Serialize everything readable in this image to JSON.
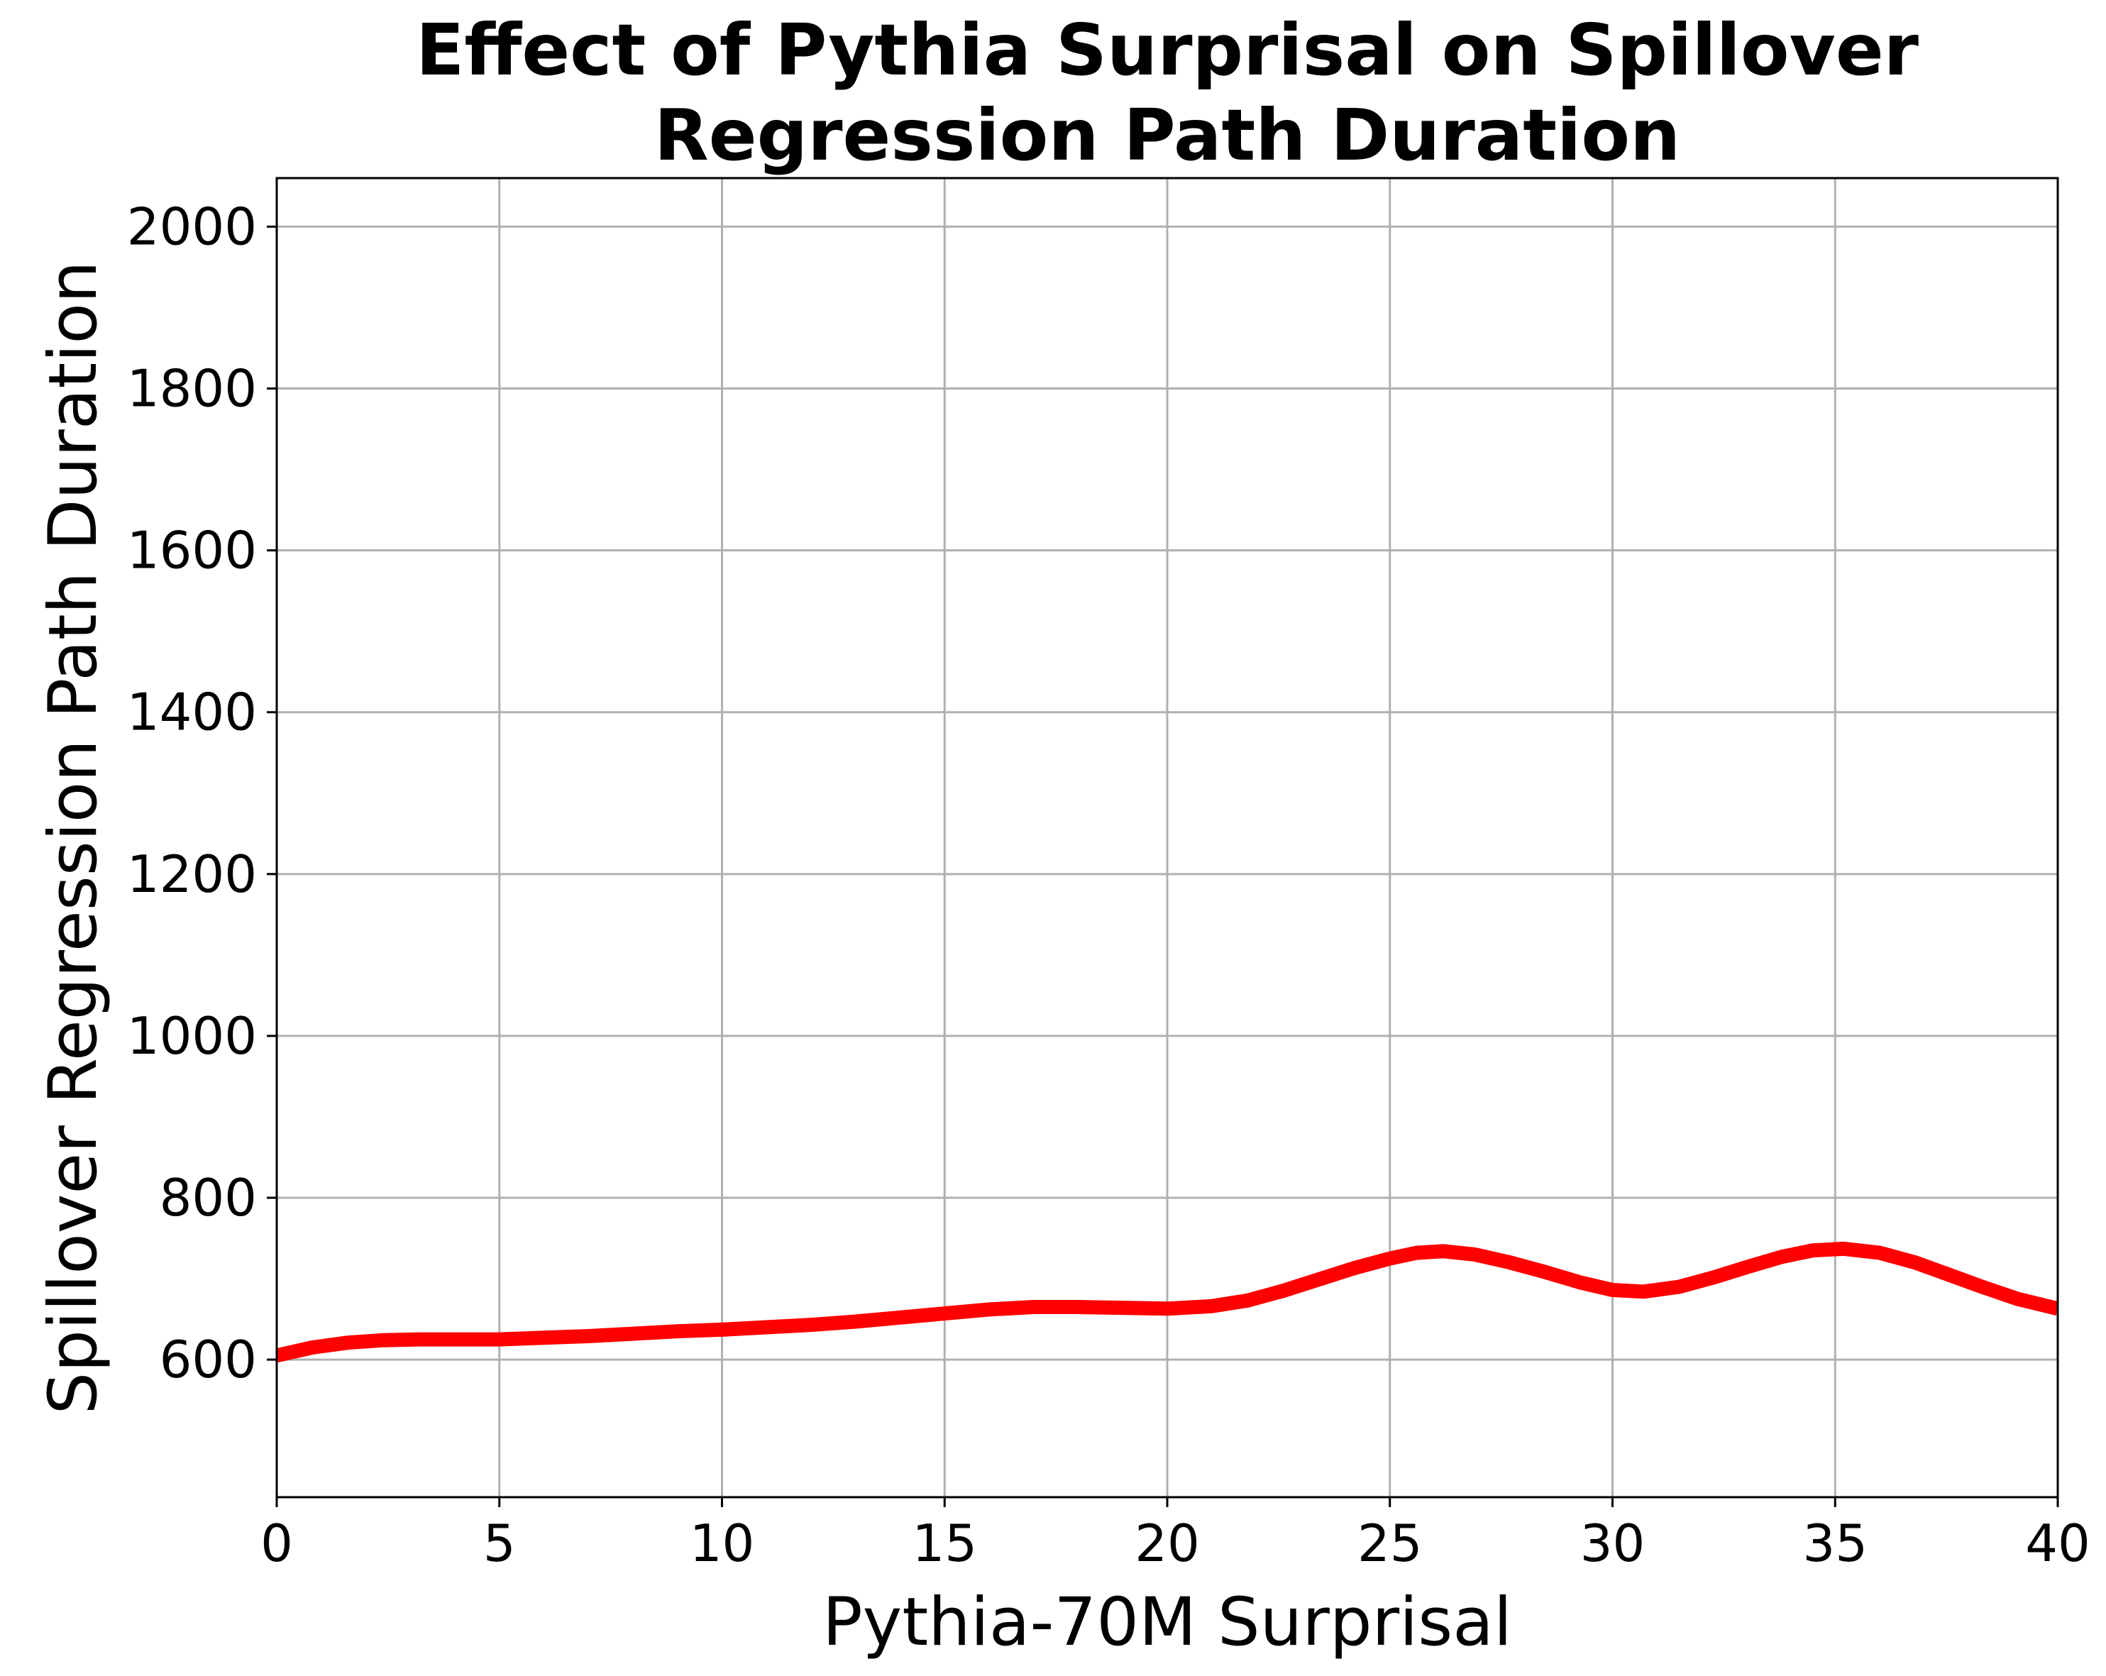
{
  "chart_data": {
    "type": "line",
    "title_lines": [
      "Effect of Pythia Surprisal on Spillover",
      "Regression Path Duration"
    ],
    "xlabel": "Pythia-70M Surprisal",
    "ylabel": "Spillover Regression Path Duration",
    "xlim": [
      0,
      40
    ],
    "ylim": [
      430,
      2060
    ],
    "xticks": [
      0,
      5,
      10,
      15,
      20,
      25,
      30,
      35,
      40
    ],
    "yticks": [
      600,
      800,
      1000,
      1200,
      1400,
      1600,
      1800,
      2000
    ],
    "xtick_labels": [
      "0",
      "5",
      "10",
      "15",
      "20",
      "25",
      "30",
      "35",
      "40"
    ],
    "ytick_labels": [
      "600",
      "800",
      "1000",
      "1200",
      "1400",
      "1600",
      "1800",
      "2000"
    ],
    "grid": true,
    "series": [
      {
        "color": "#ff0000",
        "x": [
          0,
          0.8,
          1.6,
          2.4,
          3.2,
          4.0,
          5.0,
          6.0,
          7.0,
          8.0,
          9.0,
          10.0,
          11.0,
          12.0,
          13.0,
          14.0,
          15.0,
          16.0,
          17.0,
          18.0,
          19.0,
          20.0,
          21.0,
          21.8,
          22.6,
          23.4,
          24.2,
          25.0,
          25.6,
          26.2,
          26.9,
          27.7,
          28.5,
          29.3,
          30.0,
          30.7,
          31.5,
          32.3,
          33.0,
          33.8,
          34.5,
          35.2,
          36.0,
          36.8,
          37.5,
          38.3,
          39.1,
          40.0
        ],
        "y": [
          605,
          615,
          621,
          624,
          625,
          625,
          625,
          627,
          629,
          632,
          635,
          637,
          640,
          643,
          647,
          652,
          657,
          662,
          665,
          665,
          664,
          663,
          666,
          673,
          685,
          699,
          713,
          725,
          732,
          734,
          730,
          720,
          708,
          695,
          686,
          684,
          690,
          702,
          714,
          727,
          735,
          737,
          732,
          720,
          706,
          690,
          675,
          663
        ]
      }
    ]
  }
}
